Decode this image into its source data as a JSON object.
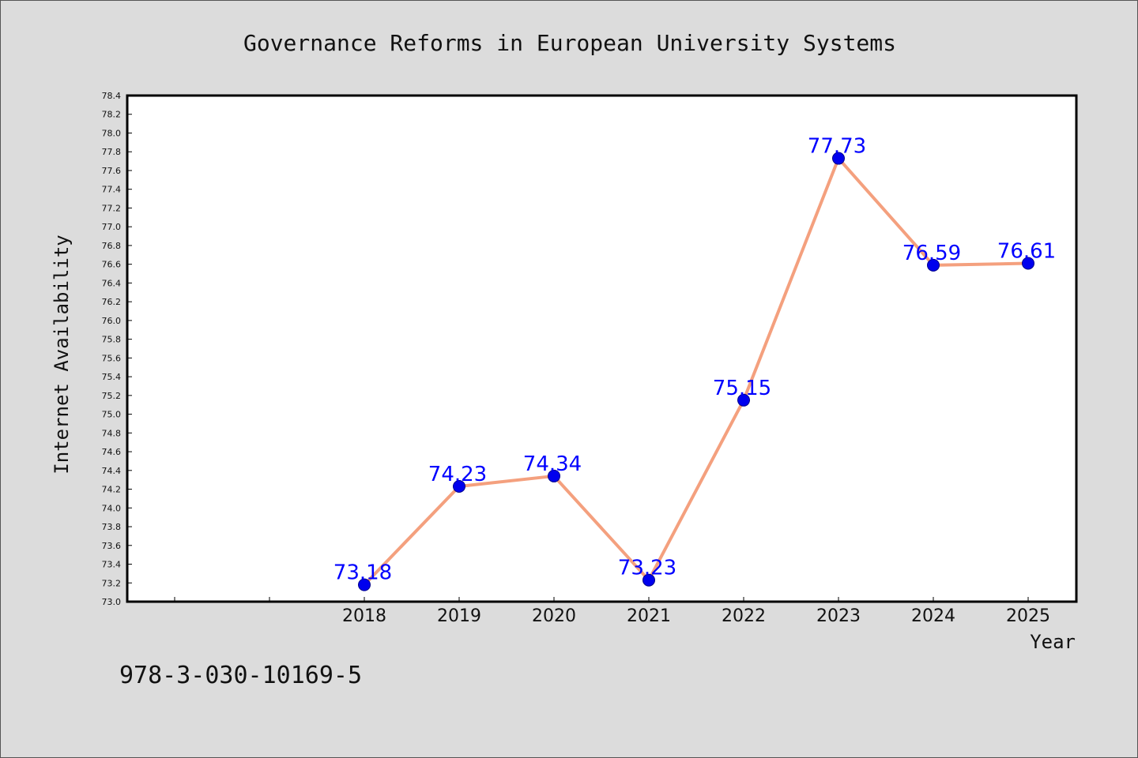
{
  "chart_data": {
    "type": "line",
    "title": "Governance Reforms in European University Systems",
    "xlabel": "Year",
    "ylabel": "Internet Availability",
    "x": [
      "2018",
      "2019",
      "2020",
      "2021",
      "2022",
      "2023",
      "2024",
      "2025"
    ],
    "series": [
      {
        "values": [
          73.18,
          74.23,
          74.34,
          73.23,
          75.15,
          77.73,
          76.59,
          76.61
        ],
        "data_labels": [
          "73.18",
          "74.23",
          "74.34",
          "73.23",
          "75.15",
          "77.73",
          "76.59",
          "76.61"
        ]
      }
    ],
    "ylim": [
      73.0,
      78.4
    ],
    "ytick_step": 0.2,
    "yticks": [
      "73.0",
      "73.2",
      "73.4",
      "73.6",
      "73.8",
      "74.0",
      "74.2",
      "74.4",
      "74.6",
      "74.8",
      "75.0",
      "75.2",
      "75.4",
      "75.6",
      "75.8",
      "76.0",
      "76.2",
      "76.4",
      "76.6",
      "76.8",
      "77.0",
      "77.2",
      "77.4",
      "77.6",
      "77.8",
      "78.0",
      "78.2",
      "78.4"
    ],
    "grid": false,
    "legend": "none",
    "colors": {
      "line": "#f4a07e",
      "marker": "#0000ee",
      "marker_edge": "#00008b",
      "data_label": "#0000ff",
      "plot_background": "#ffffff",
      "figure_background": "#dcdcdc"
    }
  },
  "footer": {
    "isbn": "978-3-030-10169-5"
  }
}
